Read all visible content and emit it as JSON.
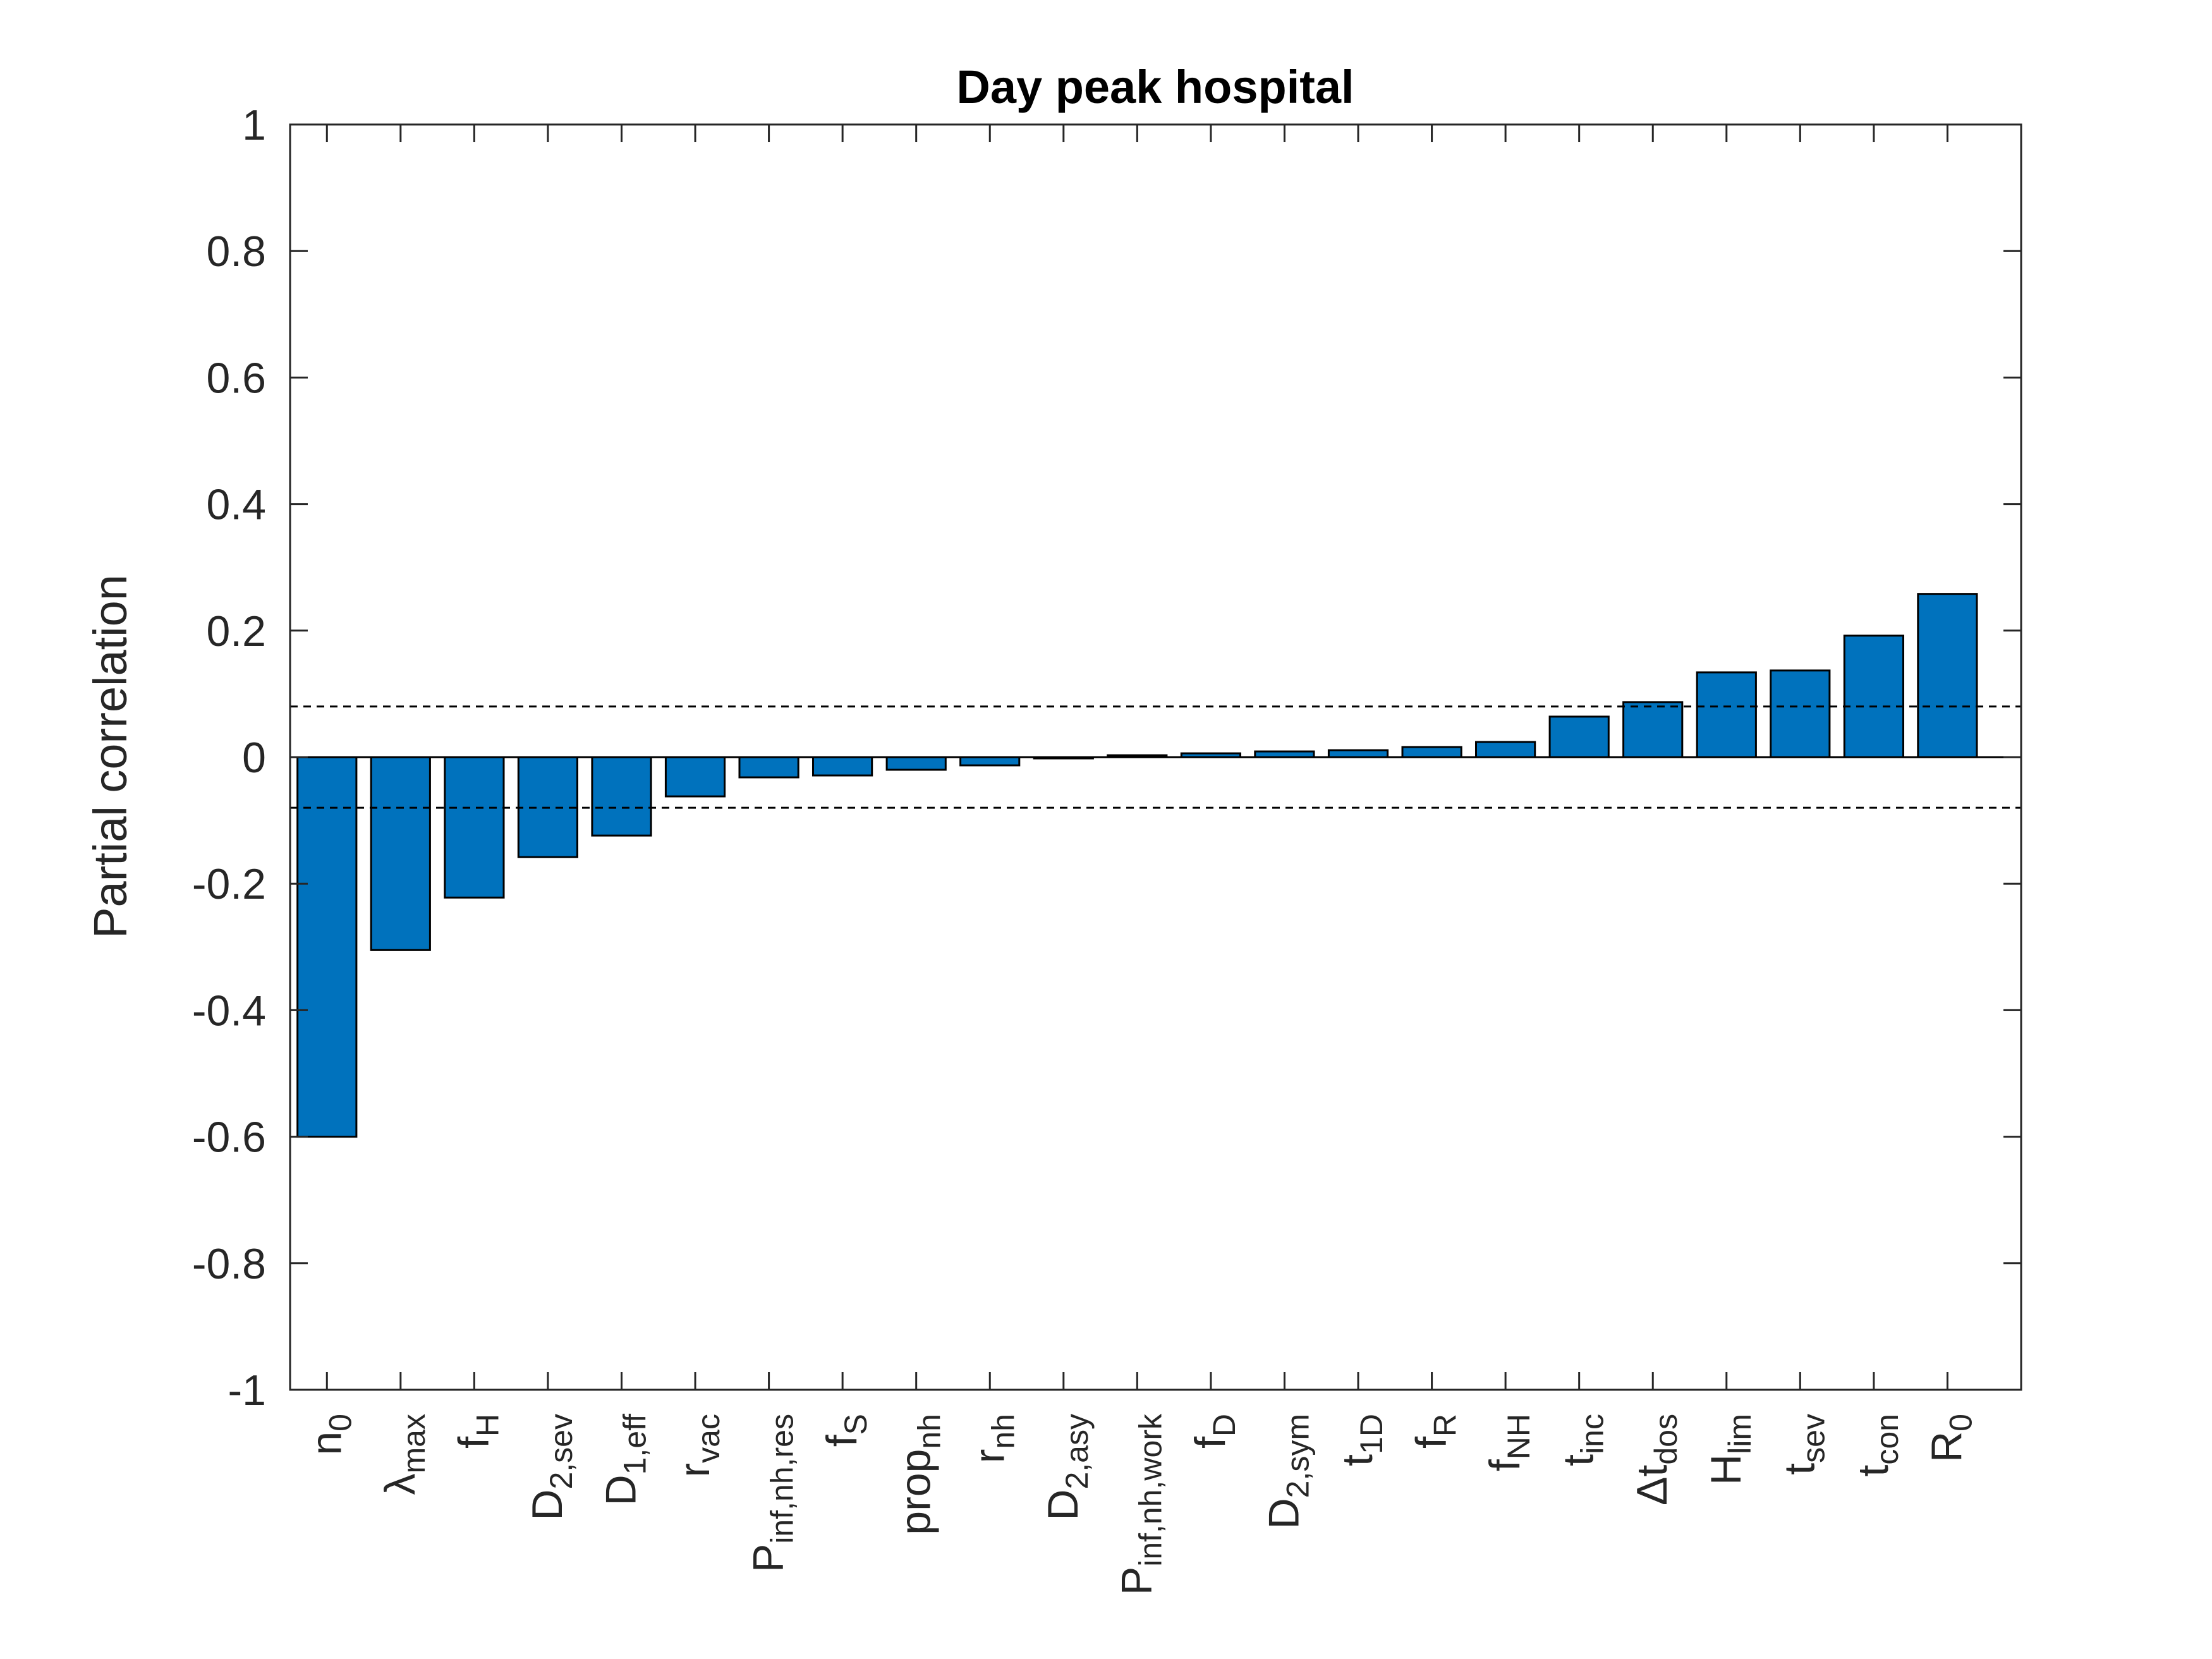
{
  "chart_data": {
    "type": "bar",
    "title": "Day peak hospital",
    "xlabel": "",
    "ylabel": "Partial correlation",
    "ylim": [
      -1,
      1
    ],
    "yticks": [
      1,
      0.8,
      0.6,
      0.4,
      0.2,
      0,
      -0.2,
      -0.4,
      -0.6,
      -0.8,
      -1
    ],
    "ytick_labels": [
      "1",
      "0.8",
      "0.6",
      "0.4",
      "0.2",
      "0",
      "-0.2",
      "-0.4",
      "-0.6",
      "-0.8",
      "-1"
    ],
    "categories": [
      {
        "base": "n",
        "sub": "0"
      },
      {
        "base": "λ",
        "sub": "max"
      },
      {
        "base": "f",
        "sub": "H"
      },
      {
        "base": "D",
        "sub": "2,sev"
      },
      {
        "base": "D",
        "sub": "1,eff"
      },
      {
        "base": "r",
        "sub": "vac"
      },
      {
        "base": "P",
        "sub": "inf,nh,res"
      },
      {
        "base": "f",
        "sub": "S"
      },
      {
        "base": "prop",
        "sub": "nh"
      },
      {
        "base": "r",
        "sub": "nh"
      },
      {
        "base": "D",
        "sub": "2,asy"
      },
      {
        "base": "P",
        "sub": "inf,nh,work"
      },
      {
        "base": "f",
        "sub": "D"
      },
      {
        "base": "D",
        "sub": "2,sym"
      },
      {
        "base": "t",
        "sub": "1D"
      },
      {
        "base": "f",
        "sub": "R"
      },
      {
        "base": "f",
        "sub": "NH"
      },
      {
        "base": "t",
        "sub": "inc"
      },
      {
        "base": "Δt",
        "sub": "dos"
      },
      {
        "base": "H",
        "sub": "lim"
      },
      {
        "base": "t",
        "sub": "sev"
      },
      {
        "base": "t",
        "sub": "con"
      },
      {
        "base": "R",
        "sub": "0"
      }
    ],
    "values": [
      -0.6,
      -0.305,
      -0.222,
      -0.158,
      -0.124,
      -0.062,
      -0.032,
      -0.029,
      -0.02,
      -0.013,
      -0.002,
      0.003,
      0.006,
      0.009,
      0.011,
      0.016,
      0.024,
      0.064,
      0.087,
      0.134,
      0.137,
      0.192,
      0.258
    ],
    "significance_thresholds": [
      0.08,
      -0.08
    ],
    "bar_color": "#0072BD",
    "grid": false,
    "legend": "none"
  }
}
